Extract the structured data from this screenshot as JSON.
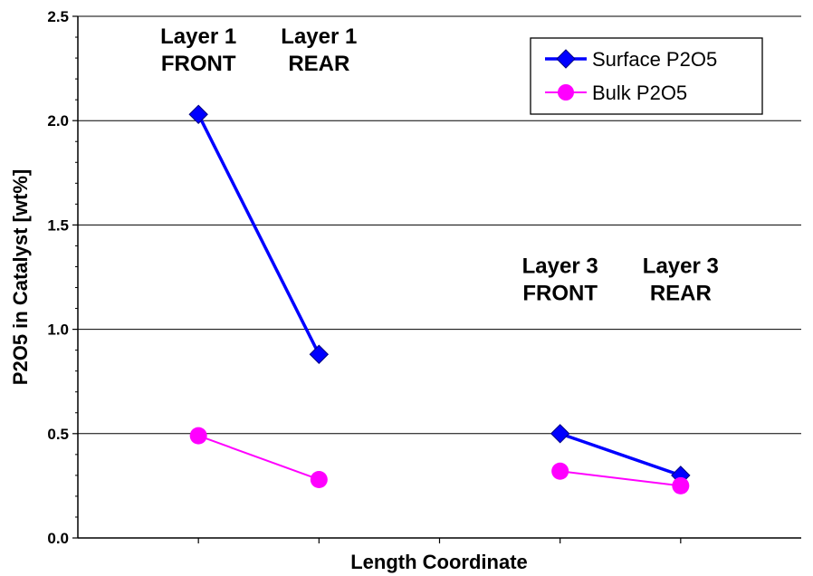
{
  "chart_data": {
    "type": "line",
    "title": "",
    "xlabel": "Length Coordinate",
    "ylabel": "P2O5 in Catalyst [wt%]",
    "ylim": [
      0,
      2.5
    ],
    "yticks": [
      "0.0",
      "0.5",
      "1.0",
      "1.5",
      "2.0",
      "2.5"
    ],
    "grid": true,
    "legend_position": "top-right",
    "x_positions": [
      1,
      2,
      4,
      5
    ],
    "series": [
      {
        "name": "Surface P2O5",
        "color": "#0000ff",
        "marker": "diamond",
        "segments": [
          [
            {
              "x": 1,
              "y": 2.03
            },
            {
              "x": 2,
              "y": 0.88
            }
          ],
          [
            {
              "x": 4,
              "y": 0.5
            },
            {
              "x": 5,
              "y": 0.3
            }
          ]
        ]
      },
      {
        "name": "Bulk P2O5",
        "color": "#ff00ff",
        "marker": "circle",
        "segments": [
          [
            {
              "x": 1,
              "y": 0.49
            },
            {
              "x": 2,
              "y": 0.28
            }
          ],
          [
            {
              "x": 4,
              "y": 0.32
            },
            {
              "x": 5,
              "y": 0.25
            }
          ]
        ]
      }
    ],
    "annotations": [
      {
        "x": 1,
        "y": 2.37,
        "lines": [
          "Layer 1",
          "FRONT"
        ]
      },
      {
        "x": 2,
        "y": 2.37,
        "lines": [
          "Layer 1",
          "REAR"
        ]
      },
      {
        "x": 4,
        "y": 1.27,
        "lines": [
          "Layer 3",
          "FRONT"
        ]
      },
      {
        "x": 5,
        "y": 1.27,
        "lines": [
          "Layer 3",
          "REAR"
        ]
      }
    ]
  }
}
